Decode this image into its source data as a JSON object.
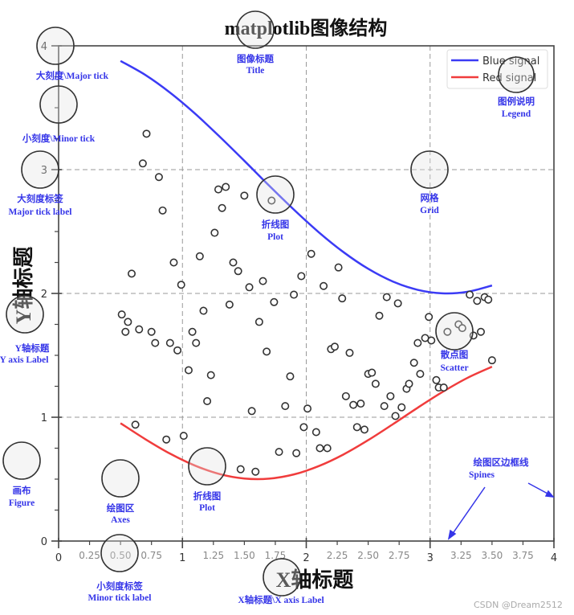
{
  "chart_data": {
    "type": "line+scatter",
    "title": "matplotlib图像结构",
    "xlabel": "X轴标题",
    "ylabel": "Y轴标题",
    "xlim": [
      0,
      4
    ],
    "ylim": [
      0,
      4
    ],
    "grid": true,
    "grid_style": "dashed",
    "legend_placement": "top-right",
    "x_major_ticks": [
      "0",
      "1",
      "2",
      "3",
      "4"
    ],
    "x_minor_ticks": [
      "0.25",
      "0.50",
      "0.75",
      "1.25",
      "1.50",
      "1.75",
      "2.25",
      "2.50",
      "2.75",
      "3.25",
      "3.50",
      "3.75"
    ],
    "y_major_ticks": [
      "0",
      "1",
      "2",
      "3",
      "4"
    ],
    "series": [
      {
        "name": "Blue signal",
        "type": "line",
        "color": "#3b3bf5",
        "x": [
          0.5,
          0.7,
          0.9,
          1.1,
          1.3,
          1.5,
          1.7,
          1.9,
          2.1,
          2.3,
          2.5,
          2.7,
          2.9,
          3.1,
          3.3,
          3.5
        ],
        "y": [
          3.878,
          3.765,
          3.622,
          3.454,
          3.267,
          3.071,
          2.871,
          2.677,
          2.495,
          2.334,
          2.199,
          2.096,
          2.029,
          2.001,
          2.013,
          2.064
        ]
      },
      {
        "name": "Red signal",
        "type": "line",
        "color": "#f03c3c",
        "x": [
          0.5,
          0.7,
          0.9,
          1.1,
          1.3,
          1.5,
          1.7,
          1.9,
          2.1,
          2.3,
          2.5,
          2.7,
          2.9,
          3.1,
          3.3,
          3.5
        ],
        "y": [
          0.952,
          0.823,
          0.706,
          0.61,
          0.541,
          0.505,
          0.504,
          0.538,
          0.605,
          0.699,
          0.815,
          0.944,
          1.077,
          1.204,
          1.317,
          1.408
        ]
      },
      {
        "type": "scatter",
        "color": "#333333",
        "points": [
          [
            0.71,
            3.29
          ],
          [
            0.68,
            3.05
          ],
          [
            0.81,
            2.94
          ],
          [
            0.84,
            2.67
          ],
          [
            1.29,
            2.84
          ],
          [
            1.35,
            2.86
          ],
          [
            1.5,
            2.79
          ],
          [
            1.32,
            2.69
          ],
          [
            1.72,
            2.75
          ],
          [
            1.26,
            2.49
          ],
          [
            1.14,
            2.3
          ],
          [
            0.93,
            2.25
          ],
          [
            1.41,
            2.25
          ],
          [
            1.45,
            2.18
          ],
          [
            0.59,
            2.16
          ],
          [
            0.99,
            2.07
          ],
          [
            1.54,
            2.05
          ],
          [
            1.65,
            2.1
          ],
          [
            1.96,
            2.14
          ],
          [
            2.04,
            2.32
          ],
          [
            1.9,
            1.99
          ],
          [
            1.74,
            1.93
          ],
          [
            1.38,
            1.91
          ],
          [
            1.17,
            1.86
          ],
          [
            0.51,
            1.83
          ],
          [
            0.56,
            1.77
          ],
          [
            1.62,
            1.77
          ],
          [
            0.54,
            1.69
          ],
          [
            0.65,
            1.71
          ],
          [
            0.75,
            1.69
          ],
          [
            0.78,
            1.6
          ],
          [
            0.9,
            1.6
          ],
          [
            0.96,
            1.54
          ],
          [
            1.08,
            1.69
          ],
          [
            1.11,
            1.6
          ],
          [
            1.05,
            1.38
          ],
          [
            1.23,
            1.34
          ],
          [
            1.68,
            1.53
          ],
          [
            1.87,
            1.33
          ],
          [
            1.2,
            1.13
          ],
          [
            1.56,
            1.05
          ],
          [
            1.83,
            1.09
          ],
          [
            2.01,
            1.07
          ],
          [
            0.62,
            0.94
          ],
          [
            0.87,
            0.82
          ],
          [
            1.01,
            0.85
          ],
          [
            1.78,
            0.72
          ],
          [
            1.92,
            0.71
          ],
          [
            1.98,
            0.92
          ],
          [
            1.47,
            0.58
          ],
          [
            1.59,
            0.56
          ],
          [
            2.26,
            2.21
          ],
          [
            2.14,
            2.06
          ],
          [
            2.29,
            1.96
          ],
          [
            2.65,
            1.97
          ],
          [
            2.74,
            1.92
          ],
          [
            2.59,
            1.82
          ],
          [
            2.99,
            1.81
          ],
          [
            3.32,
            1.99
          ],
          [
            3.38,
            1.94
          ],
          [
            3.44,
            1.97
          ],
          [
            3.47,
            1.95
          ],
          [
            3.23,
            1.75
          ],
          [
            3.26,
            1.72
          ],
          [
            3.14,
            1.69
          ],
          [
            2.96,
            1.64
          ],
          [
            2.9,
            1.6
          ],
          [
            3.01,
            1.62
          ],
          [
            3.35,
            1.66
          ],
          [
            3.41,
            1.69
          ],
          [
            2.2,
            1.55
          ],
          [
            2.23,
            1.57
          ],
          [
            2.35,
            1.52
          ],
          [
            2.87,
            1.44
          ],
          [
            2.92,
            1.35
          ],
          [
            2.5,
            1.35
          ],
          [
            2.53,
            1.36
          ],
          [
            2.56,
            1.27
          ],
          [
            3.05,
            1.3
          ],
          [
            3.07,
            1.24
          ],
          [
            3.11,
            1.24
          ],
          [
            3.5,
            1.46
          ],
          [
            2.32,
            1.17
          ],
          [
            2.38,
            1.1
          ],
          [
            2.44,
            1.11
          ],
          [
            2.63,
            1.09
          ],
          [
            2.68,
            1.17
          ],
          [
            2.77,
            1.08
          ],
          [
            2.81,
            1.23
          ],
          [
            2.83,
            1.27
          ],
          [
            2.72,
            1.01
          ],
          [
            2.08,
            0.88
          ],
          [
            2.41,
            0.92
          ],
          [
            2.47,
            0.9
          ],
          [
            2.11,
            0.75
          ],
          [
            2.17,
            0.75
          ]
        ]
      }
    ]
  },
  "annotations": {
    "major_tick": "大刻度\\Major tick",
    "minor_tick": "小刻度\\Minor tick",
    "major_tick_label_cn": "大刻度标签",
    "major_tick_label_en": "Major tick label",
    "title_cn": "图像标题",
    "title_en": "Title",
    "legend_cn": "图例说明",
    "legend_en": "Legend",
    "grid_cn": "网格",
    "grid_en": "Grid",
    "plot_cn": "折线图",
    "plot_en": "Plot",
    "ylabel_cn": "Y轴标题",
    "ylabel_en": "Y axis Label",
    "scatter_cn": "散点图",
    "scatter_en": "Scatter",
    "figure_cn": "画布",
    "figure_en": "Figure",
    "axes_cn": "绘图区",
    "axes_en": "Axes",
    "minor_tick_label_cn": "小刻度标签",
    "minor_tick_label_en": "Minor tick label",
    "xlabel": "X轴标题\\X axis Label",
    "spines_cn": "绘图区边框线",
    "spines_en": "Spines",
    "annotation_color": "#3535e8"
  },
  "watermark": "CSDN @Dream2512"
}
